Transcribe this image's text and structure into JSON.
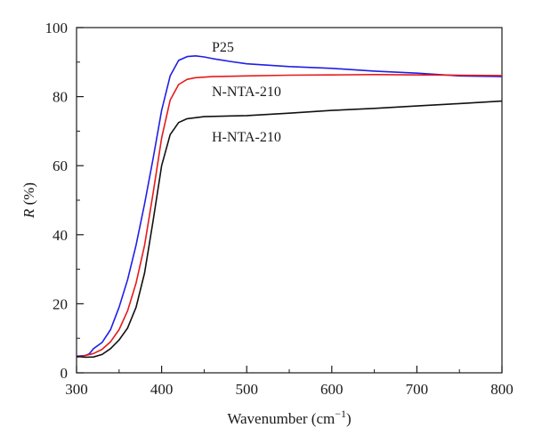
{
  "chart_data": {
    "type": "line",
    "xlabel": "Wavenumber (cm",
    "xlabel_sup": "−1",
    "xlabel_end": ")",
    "ylabel_italic": "R",
    "ylabel_rest": " (%)",
    "xlim": [
      300,
      800
    ],
    "ylim": [
      0,
      100
    ],
    "x_ticks": [
      "300",
      "400",
      "500",
      "600",
      "700",
      "800"
    ],
    "y_ticks": [
      "0",
      "20",
      "40",
      "60",
      "80",
      "100"
    ],
    "grid": false,
    "series": [
      {
        "name": "P25",
        "color": "#1f1fe6",
        "points": [
          [
            300,
            4.8
          ],
          [
            310,
            5.0
          ],
          [
            315,
            5.5
          ],
          [
            320,
            7.0
          ],
          [
            330,
            8.8
          ],
          [
            340,
            12.5
          ],
          [
            350,
            19
          ],
          [
            360,
            27
          ],
          [
            370,
            37
          ],
          [
            380,
            49
          ],
          [
            390,
            62
          ],
          [
            400,
            76
          ],
          [
            410,
            86
          ],
          [
            420,
            90.5
          ],
          [
            430,
            91.6
          ],
          [
            440,
            91.8
          ],
          [
            450,
            91.5
          ],
          [
            460,
            91.0
          ],
          [
            480,
            90.2
          ],
          [
            500,
            89.5
          ],
          [
            550,
            88.7
          ],
          [
            600,
            88.2
          ],
          [
            650,
            87.4
          ],
          [
            700,
            86.8
          ],
          [
            750,
            86.0
          ],
          [
            800,
            85.8
          ]
        ]
      },
      {
        "name": "N-NTA-210",
        "color": "#e61a1a",
        "points": [
          [
            300,
            4.5
          ],
          [
            310,
            5.0
          ],
          [
            320,
            5.6
          ],
          [
            330,
            6.8
          ],
          [
            340,
            9.0
          ],
          [
            350,
            12.5
          ],
          [
            360,
            18
          ],
          [
            370,
            26
          ],
          [
            380,
            37
          ],
          [
            390,
            52
          ],
          [
            400,
            68
          ],
          [
            410,
            79
          ],
          [
            420,
            83.5
          ],
          [
            430,
            85
          ],
          [
            440,
            85.5
          ],
          [
            460,
            85.8
          ],
          [
            500,
            86.0
          ],
          [
            550,
            86.2
          ],
          [
            600,
            86.3
          ],
          [
            650,
            86.4
          ],
          [
            700,
            86.3
          ],
          [
            750,
            86.2
          ],
          [
            800,
            86.1
          ]
        ]
      },
      {
        "name": "H-NTA-210",
        "color": "#111111",
        "points": [
          [
            300,
            4.8
          ],
          [
            310,
            4.5
          ],
          [
            320,
            4.6
          ],
          [
            330,
            5.3
          ],
          [
            340,
            7.0
          ],
          [
            350,
            9.5
          ],
          [
            360,
            13
          ],
          [
            370,
            19
          ],
          [
            380,
            29
          ],
          [
            390,
            44
          ],
          [
            400,
            60
          ],
          [
            410,
            69
          ],
          [
            420,
            72.5
          ],
          [
            430,
            73.6
          ],
          [
            450,
            74.2
          ],
          [
            500,
            74.5
          ],
          [
            550,
            75.2
          ],
          [
            600,
            76.0
          ],
          [
            650,
            76.6
          ],
          [
            700,
            77.3
          ],
          [
            750,
            78.0
          ],
          [
            800,
            78.7
          ]
        ]
      }
    ]
  }
}
